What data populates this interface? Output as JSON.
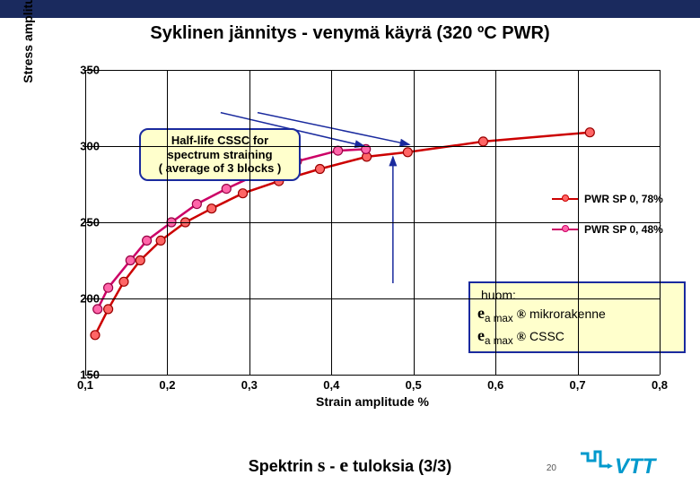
{
  "topbar_color": "#1a2a5e",
  "title": "Syklinen jännitys - venymä käyrä (320 ºC PWR)",
  "chart": {
    "type": "line",
    "xlabel": "Strain amplitude  %",
    "ylabel": "Stress amplitude  MPa",
    "xlim": [
      0.1,
      0.8
    ],
    "ylim": [
      150,
      350
    ],
    "xticks": [
      0.1,
      0.2,
      0.3,
      0.4,
      0.5,
      0.6,
      0.7,
      0.8
    ],
    "xtick_labels": [
      "0,1",
      "0,2",
      "0,3",
      "0,4",
      "0,5",
      "0,6",
      "0,7",
      "0,8"
    ],
    "yticks": [
      150,
      200,
      250,
      300,
      350
    ],
    "ytick_labels": [
      "150",
      "200",
      "250",
      "300",
      "350"
    ],
    "background_color": "#ffffff",
    "grid_color": "#000000",
    "axis_fontsize": 14,
    "tick_fontsize": 13,
    "series": [
      {
        "name": "PWR SP 0, 78%",
        "color": "#cc0000",
        "marker": "circle",
        "marker_fill": "#ff6666",
        "marker_border": "#990000",
        "line_width": 2.5,
        "x": [
          0.112,
          0.128,
          0.147,
          0.167,
          0.192,
          0.222,
          0.254,
          0.292,
          0.336,
          0.386,
          0.443,
          0.493,
          0.585,
          0.715
        ],
        "y": [
          176,
          193,
          211,
          225,
          238,
          250,
          259,
          269,
          277,
          285,
          293,
          296,
          303,
          309
        ]
      },
      {
        "name": "PWR SP 0, 48%",
        "color": "#cc0066",
        "marker": "circle",
        "marker_fill": "#ff66aa",
        "marker_border": "#990044",
        "line_width": 2.5,
        "x": [
          0.115,
          0.128,
          0.155,
          0.175,
          0.205,
          0.236,
          0.272,
          0.312,
          0.358,
          0.408,
          0.442
        ],
        "y": [
          193,
          207,
          225,
          238,
          250,
          262,
          272,
          282,
          290,
          297,
          298
        ]
      }
    ],
    "arrows": [
      {
        "from_x": 0.265,
        "from_y": 322,
        "to_x": 0.44,
        "to_y": 300,
        "color": "#1a2a9e"
      },
      {
        "from_x": 0.31,
        "from_y": 322,
        "to_x": 0.495,
        "to_y": 301,
        "color": "#1a2a9e"
      },
      {
        "from_x": 0.475,
        "from_y": 210,
        "to_x": 0.475,
        "to_y": 293,
        "color": "#1a2a9e"
      }
    ]
  },
  "callout1": {
    "line1": "Half-life CSSC for",
    "line2": "spectrum straining",
    "line3": "( average of 3 blocks )",
    "bg": "#ffffcc",
    "border": "#1a2a9e"
  },
  "callout2": {
    "title": "huom:",
    "line1_sym": "e",
    "line1_sub": "a max",
    "line1_arrow": "®",
    "line1_text": "  mikrorakenne",
    "line2_sym": "e",
    "line2_sub": "a max",
    "line2_arrow": "®",
    "line2_text": " CSSC",
    "bg": "#ffffcc",
    "border": "#1a2a9e"
  },
  "legend": {
    "items": [
      {
        "label": "PWR SP 0, 78%",
        "color": "#cc0000",
        "marker_fill": "#ff6666"
      },
      {
        "label": "PWR SP 0, 48%",
        "color": "#cc0066",
        "marker_fill": "#ff66aa"
      }
    ]
  },
  "footer": {
    "prefix": "Spektrin ",
    "sigma": "s",
    "dash": " - ",
    "eps": "e",
    "suffix": "  tuloksia (3/3)"
  },
  "page_number": "20",
  "logo": {
    "text": "VTT",
    "color": "#0099cc"
  }
}
